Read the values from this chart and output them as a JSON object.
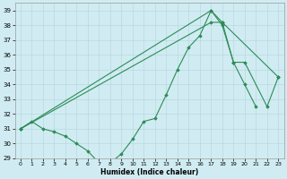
{
  "xlabel": "Humidex (Indice chaleur)",
  "line_color": "#2e8b57",
  "bg_color": "#d0ecf2",
  "grid_color": "#b8d8e0",
  "series1_x": [
    0,
    1,
    2,
    3,
    4,
    5,
    6,
    7,
    8,
    9,
    10,
    11,
    12,
    13,
    14,
    15,
    16,
    17,
    18,
    19,
    20,
    21
  ],
  "series1_y": [
    31.0,
    31.5,
    31.0,
    30.8,
    30.5,
    30.0,
    29.5,
    28.7,
    28.7,
    29.3,
    30.3,
    31.5,
    31.7,
    33.3,
    35.0,
    36.5,
    37.3,
    39.0,
    38.0,
    35.5,
    34.0,
    32.5
  ],
  "series2_x": [
    0,
    17,
    18,
    19,
    20,
    22,
    23
  ],
  "series2_y": [
    31.0,
    39.0,
    38.2,
    35.5,
    35.5,
    32.5,
    34.5
  ],
  "series3_x": [
    0,
    17,
    18,
    23
  ],
  "series3_y": [
    31.0,
    38.2,
    38.2,
    34.5
  ],
  "ylim": [
    29,
    39.5
  ],
  "xlim": [
    -0.5,
    23.5
  ],
  "yticks": [
    29,
    30,
    31,
    32,
    33,
    34,
    35,
    36,
    37,
    38,
    39
  ],
  "xticks": [
    0,
    1,
    2,
    3,
    4,
    5,
    6,
    7,
    8,
    9,
    10,
    11,
    12,
    13,
    14,
    15,
    16,
    17,
    18,
    19,
    20,
    21,
    22,
    23
  ]
}
